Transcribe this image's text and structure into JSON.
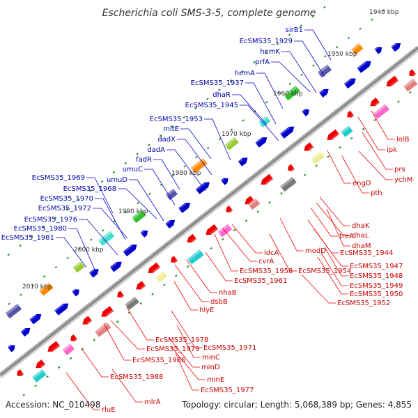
{
  "title": "Escherichia coli SMS-3-5, complete genome",
  "footer": {
    "accession": "Accession: NC_010498",
    "summary": "Topology: circular; Length: 5,068,389 bp; Genes: 4,855"
  },
  "colors": {
    "backbone": "#888888",
    "forward_gene": "#0000cc",
    "reverse_gene": "#ee0000",
    "blue_label": "#0000aa",
    "red_label": "#cc0000",
    "tick": "#2e8b2e"
  },
  "kbp_ticks": [
    "1940 kbp",
    "1950 kbp",
    "1960 kbp",
    "1970 kbp",
    "1980 kbp",
    "1990 kbp",
    "2000 kbp",
    "2010 kbp"
  ],
  "forward_labels": [
    "sirB1",
    "EcSMS35_1929",
    "hemK",
    "prfA",
    "hemA",
    "EcSMS35_1937",
    "dhaR",
    "EcSMS35_1945",
    "EcSMS35_1953",
    "mltE",
    "dadX",
    "dadA",
    "fadR",
    "umuC",
    "umuD",
    "EcSMS35_1968",
    "EcSMS35_1969",
    "EcSMS35_1970",
    "EcSMS35_1972",
    "EcSMS35_1976",
    "EcSMS35_1980",
    "EcSMS35_1981"
  ],
  "reverse_labels": [
    "lolB",
    "ipk",
    "prs",
    "ychM",
    "engD",
    "pth",
    "dhaK",
    "dhaL",
    "dhaM",
    "treA",
    "EcSMS35_1944",
    "EcSMS35_1947",
    "EcSMS35_1948",
    "EcSMS35_1949",
    "EcSMS35_1950",
    "EcSMS35_1952",
    "modD",
    "EcSMS35_1954",
    "ldcA",
    "cvrA",
    "EcSMS35_1958",
    "EcSMS35_1961",
    "nhaB",
    "dsbB",
    "hlyE",
    "EcSMS35_1978",
    "EcSMS35_1971",
    "EcSMS35_1979",
    "minC",
    "EcSMS35_1986",
    "minD",
    "minE",
    "EcSMS35_1977",
    "EcSMS35_1988",
    "mlrA",
    "rluE"
  ]
}
